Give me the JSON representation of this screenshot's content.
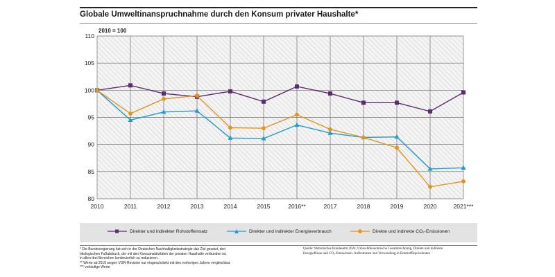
{
  "title": "Globale Umweltinanspruchnahme durch den Konsum privater Haushalte*",
  "colors": {
    "rohstoff": "#5b2c6f",
    "energie": "#1a9dd0",
    "co2": "#e59417"
  },
  "chart_data": {
    "type": "line",
    "unit_label": "2010 = 100",
    "categories": [
      "2010",
      "2011",
      "2012",
      "2013",
      "2014",
      "2015",
      "2016**",
      "2017",
      "2018",
      "2019",
      "2020",
      "2021***"
    ],
    "ylim": [
      80,
      110
    ],
    "yticks": [
      "80",
      "85",
      "90",
      "95",
      "100",
      "105",
      "110"
    ],
    "grid": true,
    "legend_position": "bottom",
    "series": [
      {
        "name": "Direkter und indirekter Rohstoffeinsatz",
        "marker": "square",
        "values": [
          100,
          100.9,
          99.4,
          98.8,
          99.8,
          97.9,
          100.7,
          99.4,
          97.7,
          97.7,
          96.1,
          99.6
        ]
      },
      {
        "name": "Direkter und indirekter Energieverbrauch",
        "marker": "triangle",
        "values": [
          100,
          94.5,
          96.0,
          96.2,
          91.2,
          91.1,
          93.6,
          92.1,
          91.3,
          91.4,
          85.5,
          85.7
        ]
      },
      {
        "name": "Direkte und indirekte CO₂-Emissionen",
        "marker": "circle",
        "values": [
          100,
          95.7,
          98.4,
          99.0,
          93.1,
          93.0,
          95.5,
          92.8,
          91.3,
          89.4,
          82.2,
          83.2
        ]
      }
    ]
  },
  "footnotes": [
    "* Die Bundesregierung hat sich in der Deutschen Nachhaltigkeitsstrategie das Ziel gesetzt, den",
    "ökologischen Fußabdruck, der mit den Konsumaktivitäten der privaten Haushalte verbunden ist,",
    "in allen drei Bereichen kontinuierlich zu reduzieren.",
    "** Werte ab 2016 wegen VGR-Revision nur eingeschränkt mit den vorherigen Jahren vergleichbar.",
    "*** vorläufige Werte"
  ],
  "source": [
    "Quelle: Statistisches Bundesamt 2024, Umweltökonomische Gesamtrechnung, Direkte und indirekte",
    "Energieflüsse und CO₂-Emissionen. Aufkommen und Verwendung in Rohstoffäquivalenten"
  ]
}
